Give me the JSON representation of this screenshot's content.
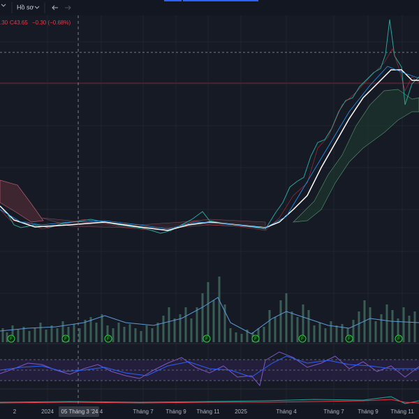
{
  "toolbar": {
    "profile": "Hồ sơ"
  },
  "legend": {
    "open_tail": ".30",
    "close": "C43.65",
    "change": "−0.30 (−0.68%)"
  },
  "events": {
    "labels": [
      "F",
      "F",
      "F",
      "F",
      "F",
      "F",
      "F",
      "F"
    ]
  },
  "time_axis": {
    "labels": [
      "2",
      "2024",
      "05 Tháng 3 '24",
      "4",
      "Tháng 7",
      "Tháng 9",
      "Tháng 11",
      "2025",
      "Tháng 4",
      "Tháng 7",
      "Tháng 9",
      "Tháng 11"
    ]
  }
}
